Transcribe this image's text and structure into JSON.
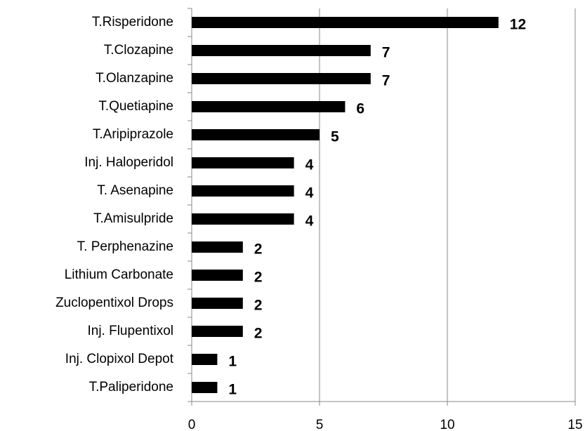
{
  "chart_data": {
    "type": "bar",
    "orientation": "horizontal",
    "categories": [
      "T.Risperidone",
      "T.Clozapine",
      "T.Olanzapine",
      "T.Quetiapine",
      "T.Aripiprazole",
      "Inj. Haloperidol",
      "T. Asenapine",
      "T.Amisulpride",
      "T. Perphenazine",
      "Lithium Carbonate",
      "Zuclopentixol Drops",
      "Inj. Flupentixol",
      "Inj. Clopixol Depot",
      "T.Paliperidone"
    ],
    "values": [
      12,
      7,
      7,
      6,
      5,
      4,
      4,
      4,
      2,
      2,
      2,
      2,
      1,
      1
    ],
    "color": "#000000",
    "xlim": [
      0,
      15
    ],
    "xticks": [
      0,
      5,
      10,
      15
    ],
    "grid": true
  }
}
